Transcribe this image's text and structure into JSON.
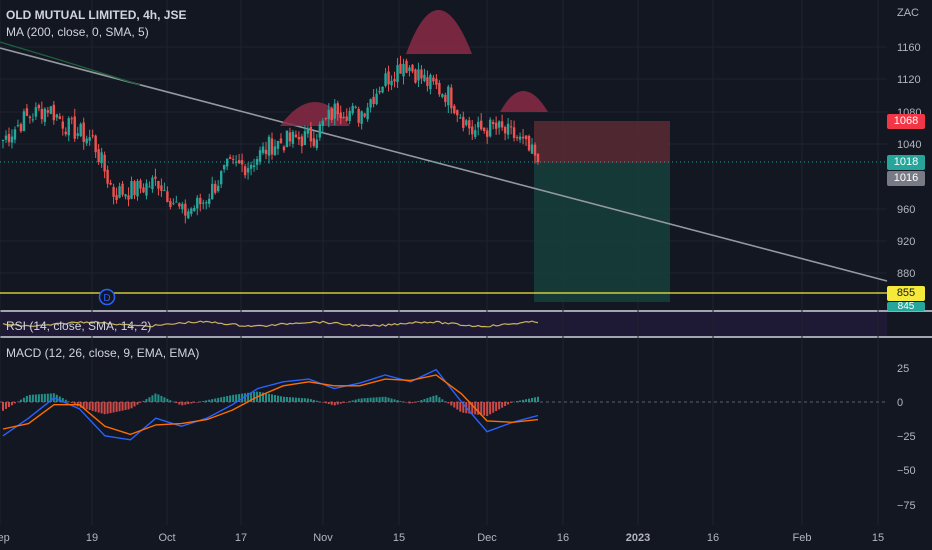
{
  "header": {
    "title": "OLD MUTUAL LIMITED, 4h, JSE",
    "ma_label": "MA (200, close, 0, SMA, 5)",
    "rsi_label": "RSI (14, close, SMA, 14, 2)",
    "macd_label": "MACD (12, 26, close, 9, EMA, EMA)"
  },
  "price_axis": {
    "currency": "ZAC",
    "ticks": [
      "1160",
      "1120",
      "1080",
      "1040",
      "960",
      "920",
      "880"
    ],
    "badges": {
      "stop": "1068",
      "last": "1018",
      "prev": "1016",
      "target": "855",
      "rsi_value": "845"
    }
  },
  "macd_axis": {
    "ticks": [
      "25",
      "0",
      "−25",
      "−50",
      "−75"
    ]
  },
  "time_axis": {
    "ticks": [
      "Sep",
      "19",
      "Oct",
      "17",
      "Nov",
      "15",
      "Dec",
      "16",
      "2023",
      "16",
      "Feb",
      "15"
    ]
  },
  "markers": {
    "dividend": "D"
  },
  "colors": {
    "up": "#26a69a",
    "down": "#ef5350",
    "ma": "#1e5e3a",
    "trendline": "#9598a1",
    "target_line": "#f5e93a",
    "stop_zone": "#5a2a33",
    "target_zone": "#163d3a",
    "macd_line": "#2962ff",
    "signal_line": "#ff6d00",
    "rsi_line": "#c9b458"
  },
  "chart_data": [
    {
      "type": "candlestick",
      "title": "OLD MUTUAL LIMITED, 4h, JSE",
      "ylabel": "ZAC",
      "ylim": [
        850,
        1195
      ],
      "price_levels": {
        "last": 1018,
        "stop": 1068,
        "target": 855
      },
      "close_path": [
        {
          "x": "Sep",
          "y": 1045
        },
        {
          "x": "Sep 9",
          "y": 1070
        },
        {
          "x": "Sep 12",
          "y": 1085
        },
        {
          "x": "Sep 19",
          "y": 1060
        },
        {
          "x": "Sep 22",
          "y": 1045
        },
        {
          "x": "Sep 27",
          "y": 980
        },
        {
          "x": "Oct",
          "y": 985
        },
        {
          "x": "Oct 7",
          "y": 995
        },
        {
          "x": "Oct 12",
          "y": 955
        },
        {
          "x": "Oct 17",
          "y": 970
        },
        {
          "x": "Oct 20",
          "y": 1010
        },
        {
          "x": "Oct 25",
          "y": 1015
        },
        {
          "x": "Oct 28",
          "y": 1040
        },
        {
          "x": "Nov",
          "y": 1045
        },
        {
          "x": "Nov 4",
          "y": 1050
        },
        {
          "x": "Nov 9",
          "y": 1085
        },
        {
          "x": "Nov 15",
          "y": 1075
        },
        {
          "x": "Nov 18",
          "y": 1115
        },
        {
          "x": "Nov 22",
          "y": 1140
        },
        {
          "x": "Nov 25",
          "y": 1115
        },
        {
          "x": "Nov 28",
          "y": 1100
        },
        {
          "x": "Dec",
          "y": 1055
        },
        {
          "x": "Dec 5",
          "y": 1060
        },
        {
          "x": "Dec 8",
          "y": 1048
        },
        {
          "x": "Dec 9",
          "y": 1018
        }
      ],
      "annotations": [
        "head and shoulders arcs",
        "descending trendline",
        "short position: entry 1018, stop 1068, target 855"
      ]
    },
    {
      "type": "line",
      "title": "MACD (12, 26, close, 9, EMA, EMA)",
      "ylim": [
        -85,
        45
      ],
      "series": [
        {
          "name": "",
          "values": [
            -25,
            -12,
            3,
            -5,
            -25,
            -28,
            -12,
            -18,
            -12,
            -2,
            10,
            15,
            17,
            10,
            14,
            20,
            15,
            24,
            0,
            -22,
            -15,
            -10
          ]
        },
        {
          "name": "",
          "values": [
            -20,
            -16,
            -2,
            -2,
            -18,
            -24,
            -17,
            -16,
            -13,
            -6,
            4,
            12,
            15,
            12,
            12,
            17,
            16,
            20,
            6,
            -14,
            -15,
            -13
          ]
        }
      ],
      "x": [
        "Sep",
        "19",
        "Oct",
        "Oct 8",
        "Oct 12",
        "17",
        "Oct 22",
        "Oct 26",
        "Nov",
        "Nov 5",
        "Nov 9",
        "15",
        "Nov 18",
        "Nov 21",
        "Nov 23",
        "Nov 25",
        "Nov 28",
        "Nov 30",
        "Dec",
        "Dec 5",
        "Dec 8",
        "Dec 9"
      ]
    }
  ]
}
